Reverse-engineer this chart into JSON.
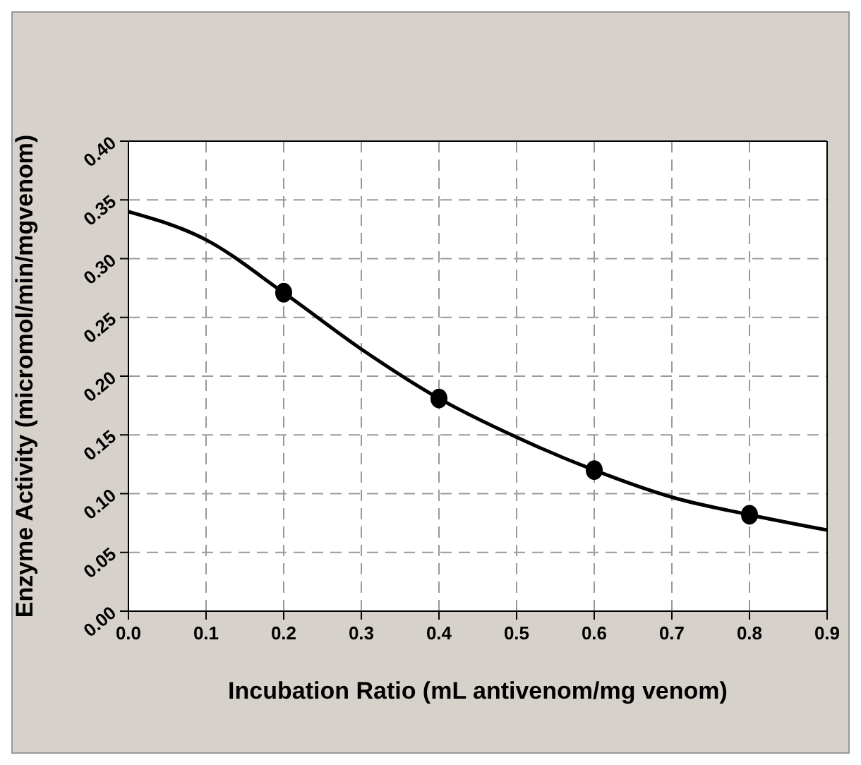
{
  "chart_data": {
    "type": "scatter",
    "xlabel": "Incubation Ratio (mL antivenom/mg venom)",
    "ylabel": "Enzyme Activity (micromol/min/mgvenom)",
    "series": [
      {
        "type": "line",
        "color": "#000000",
        "x": [
          0,
          0.1,
          0.2,
          0.3,
          0.4,
          0.5,
          0.6,
          0.7,
          0.8,
          0.9
        ],
        "values": [
          0.34,
          0.316,
          0.271,
          0.223,
          0.181,
          0.148,
          0.12,
          0.097,
          0.082,
          0.069
        ],
        "marker": "none",
        "line_style": "solid"
      },
      {
        "type": "scatter",
        "color": "#000000",
        "x": [
          0.2,
          0.4,
          0.6,
          0.8
        ],
        "values": [
          0.271,
          0.181,
          0.12,
          0.082
        ],
        "marker": "circle"
      }
    ],
    "xlim": [
      0,
      0.9
    ],
    "xticks": [
      {
        "value": 0,
        "label": "0.0"
      },
      0.1,
      0.2,
      0.3,
      0.4,
      0.5,
      0.6,
      0.7,
      0.8,
      0.9
    ],
    "ylim": [
      0,
      0.4
    ],
    "yticks": [
      {
        "value": 0,
        "label": "0.00"
      },
      0.05,
      {
        "value": 0.1,
        "label": "0.10"
      },
      0.15,
      {
        "value": 0.2,
        "label": "0.20"
      },
      0.25,
      {
        "value": 0.3,
        "label": "0.30"
      },
      0.35,
      {
        "value": 0.4,
        "label": "0.40"
      }
    ],
    "grid": true,
    "legend": false
  }
}
